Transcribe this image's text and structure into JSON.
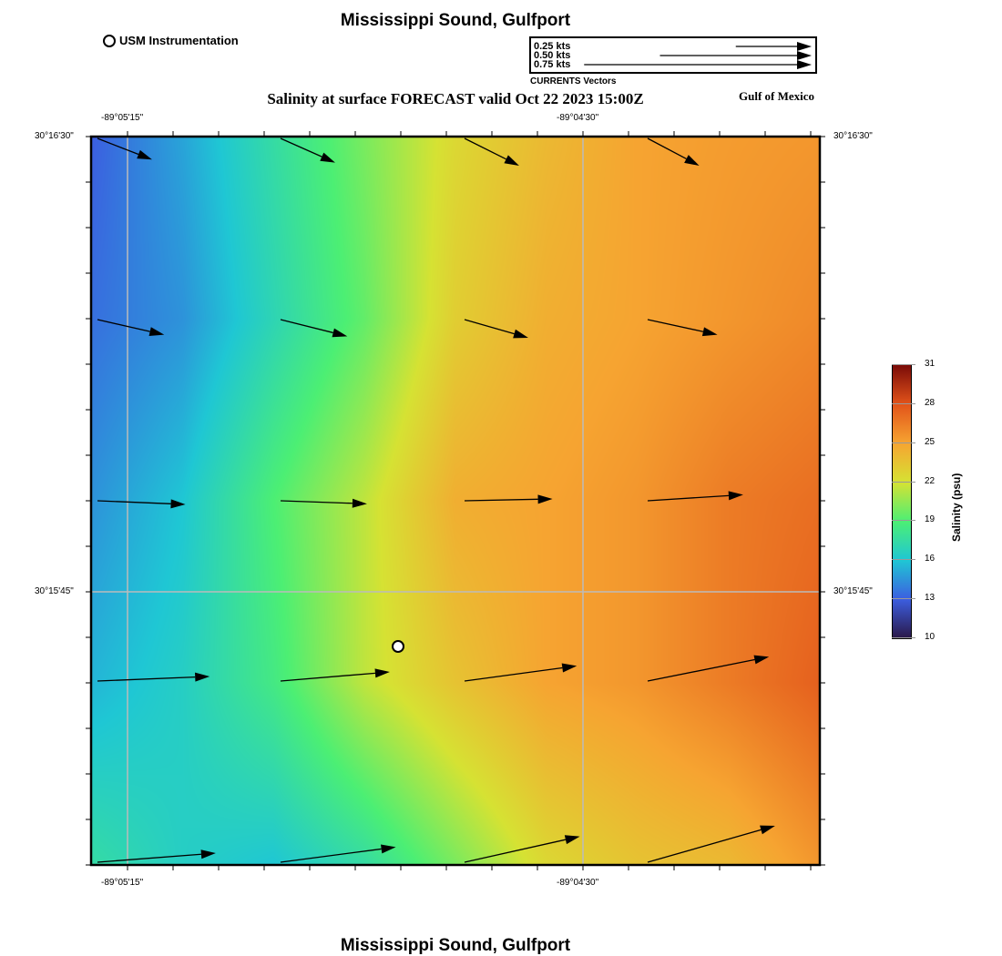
{
  "header": {
    "title": "Mississippi Sound, Gulfport",
    "subtitle": "Salinity at surface FORECAST valid Oct 22 2023 15:00Z",
    "region": "Gulf of Mexico",
    "footer_title": "Mississippi Sound, Gulfport"
  },
  "station_legend": {
    "label": "USM Instrumentation",
    "icon": "circle-marker-icon"
  },
  "vector_legend": {
    "caption": "CURRENTS Vectors",
    "items": [
      {
        "label": "0.25 kts",
        "speed": 0.25
      },
      {
        "label": "0.50 kts",
        "speed": 0.5
      },
      {
        "label": "0.75 kts",
        "speed": 0.75
      }
    ]
  },
  "axes": {
    "lon_ticks": [
      "-89°05'15\"",
      "-89°04'30\""
    ],
    "lat_ticks": [
      "30°16'30\"",
      "30°15'45\""
    ]
  },
  "colorbar": {
    "label": "Salinity (psu)",
    "ticks": [
      "31",
      "28",
      "25",
      "22",
      "19",
      "16",
      "13",
      "10"
    ],
    "range": [
      10,
      31
    ],
    "stops": [
      {
        "v": 10,
        "c": "#2a1848"
      },
      {
        "v": 13,
        "c": "#3c5ee0"
      },
      {
        "v": 16,
        "c": "#1fc7d4"
      },
      {
        "v": 19,
        "c": "#4cef74"
      },
      {
        "v": 22,
        "c": "#d6e233"
      },
      {
        "v": 25,
        "c": "#f6a431"
      },
      {
        "v": 28,
        "c": "#e2531a"
      },
      {
        "v": 31,
        "c": "#7a0b08"
      }
    ]
  },
  "chart_data": {
    "type": "heatmap",
    "variable": "Salinity (psu)",
    "salinity_grid_rows_north_to_south": [
      [
        13,
        15,
        17.5,
        20,
        22.5,
        24,
        25,
        25.3,
        25.5
      ],
      [
        13.5,
        14.5,
        17,
        19.5,
        23,
        24.5,
        25,
        25.5,
        26
      ],
      [
        14.5,
        16,
        19,
        21.5,
        24.5,
        25,
        25.5,
        26.5,
        27
      ],
      [
        15.5,
        16.5,
        18.5,
        21.5,
        23.5,
        25,
        25.5,
        26.5,
        27.5
      ],
      [
        17.5,
        16.5,
        16,
        17.5,
        20,
        22.5,
        23.5,
        24,
        25.5
      ]
    ],
    "current_vectors_kts_rows_north_to_south": [
      [
        {
          "u": 0.18,
          "v": -0.07
        },
        {
          "u": 0.18,
          "v": -0.08
        },
        {
          "u": 0.18,
          "v": -0.09
        },
        {
          "u": 0.17,
          "v": -0.09
        }
      ],
      [
        {
          "u": 0.22,
          "v": -0.05
        },
        {
          "u": 0.22,
          "v": -0.055
        },
        {
          "u": 0.21,
          "v": -0.06
        },
        {
          "u": 0.23,
          "v": -0.05
        }
      ],
      [
        {
          "u": 0.29,
          "v": -0.012
        },
        {
          "u": 0.285,
          "v": -0.01
        },
        {
          "u": 0.29,
          "v": 0.006
        },
        {
          "u": 0.315,
          "v": 0.02
        }
      ],
      [
        {
          "u": 0.37,
          "v": 0.015
        },
        {
          "u": 0.36,
          "v": 0.03
        },
        {
          "u": 0.37,
          "v": 0.05
        },
        {
          "u": 0.4,
          "v": 0.08
        }
      ],
      [
        {
          "u": 0.39,
          "v": 0.03
        },
        {
          "u": 0.38,
          "v": 0.05
        },
        {
          "u": 0.38,
          "v": 0.085
        },
        {
          "u": 0.42,
          "v": 0.12
        }
      ]
    ],
    "station": {
      "name": "USM Instrumentation",
      "lon": "-89°04'48\"",
      "lat": "30°15'40\""
    }
  }
}
